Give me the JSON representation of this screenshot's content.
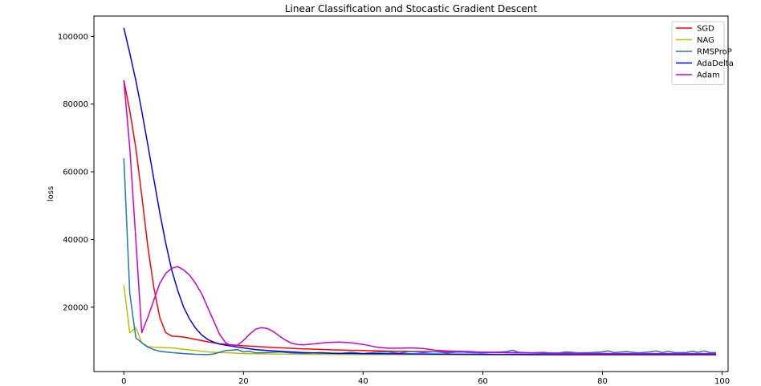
{
  "chart_data": {
    "type": "line",
    "title": "Linear Classification and Stocastic Gradient Descent",
    "xlabel": "",
    "ylabel": "loss",
    "xlim": [
      -5,
      101
    ],
    "ylim": [
      1000,
      106000
    ],
    "xticks": [
      0,
      20,
      40,
      60,
      80,
      100
    ],
    "yticks": [
      20000,
      40000,
      60000,
      80000,
      100000
    ],
    "grid": false,
    "legend": "top-right",
    "series": [
      {
        "name": "SGD",
        "color": "#ff0000",
        "points": [
          [
            0,
            87000
          ],
          [
            1,
            78000
          ],
          [
            2,
            67000
          ],
          [
            3,
            53000
          ],
          [
            4,
            38000
          ],
          [
            5,
            26000
          ],
          [
            6,
            17000
          ],
          [
            7,
            12500
          ],
          [
            8,
            11500
          ],
          [
            10,
            11200
          ],
          [
            12,
            10500
          ],
          [
            14,
            9800
          ],
          [
            16,
            9200
          ],
          [
            18,
            8900
          ],
          [
            20,
            8600
          ],
          [
            25,
            8100
          ],
          [
            30,
            7700
          ],
          [
            35,
            7400
          ],
          [
            40,
            7200
          ],
          [
            45,
            7000
          ],
          [
            50,
            6900
          ],
          [
            55,
            6800
          ],
          [
            60,
            6700
          ],
          [
            65,
            6600
          ],
          [
            70,
            6500
          ],
          [
            75,
            6400
          ],
          [
            80,
            6300
          ],
          [
            85,
            6200
          ],
          [
            90,
            6100
          ],
          [
            95,
            6000
          ],
          [
            99,
            6000
          ]
        ]
      },
      {
        "name": "NAG",
        "color": "#bfbf00",
        "points": [
          [
            0,
            26500
          ],
          [
            1,
            12500
          ],
          [
            2,
            14000
          ],
          [
            3,
            9500
          ],
          [
            4,
            8400
          ],
          [
            5,
            8200
          ],
          [
            8,
            8000
          ],
          [
            10,
            7600
          ],
          [
            12,
            7200
          ],
          [
            14,
            6800
          ],
          [
            16,
            6600
          ],
          [
            18,
            6500
          ],
          [
            20,
            6300
          ],
          [
            25,
            6200
          ],
          [
            30,
            6100
          ],
          [
            40,
            6000
          ],
          [
            50,
            6000
          ],
          [
            60,
            5900
          ],
          [
            70,
            5900
          ],
          [
            80,
            5900
          ],
          [
            90,
            5900
          ],
          [
            99,
            5900
          ]
        ]
      },
      {
        "name": "RMSProP",
        "color": "#1f77b4",
        "points": [
          [
            0,
            64000
          ],
          [
            1,
            24000
          ],
          [
            2,
            11000
          ],
          [
            3,
            9500
          ],
          [
            4,
            8200
          ],
          [
            5,
            7500
          ],
          [
            6,
            7000
          ],
          [
            8,
            6600
          ],
          [
            10,
            6300
          ],
          [
            12,
            6100
          ],
          [
            14,
            6000
          ],
          [
            15,
            6200
          ],
          [
            16,
            6700
          ],
          [
            17,
            7200
          ],
          [
            18,
            7300
          ],
          [
            19,
            7500
          ],
          [
            20,
            6800
          ],
          [
            21,
            7000
          ],
          [
            22,
            6500
          ],
          [
            24,
            6600
          ],
          [
            26,
            6800
          ],
          [
            28,
            6500
          ],
          [
            30,
            6400
          ],
          [
            33,
            6600
          ],
          [
            36,
            6300
          ],
          [
            38,
            6700
          ],
          [
            40,
            6300
          ],
          [
            42,
            6700
          ],
          [
            44,
            6800
          ],
          [
            46,
            6400
          ],
          [
            48,
            7000
          ],
          [
            50,
            6600
          ],
          [
            52,
            6900
          ],
          [
            54,
            6500
          ],
          [
            56,
            6800
          ],
          [
            58,
            6600
          ],
          [
            60,
            6500
          ],
          [
            62,
            6700
          ],
          [
            64,
            6900
          ],
          [
            65,
            7300
          ],
          [
            66,
            6700
          ],
          [
            68,
            6500
          ],
          [
            70,
            6700
          ],
          [
            72,
            6400
          ],
          [
            74,
            6800
          ],
          [
            76,
            6500
          ],
          [
            78,
            6600
          ],
          [
            80,
            6800
          ],
          [
            81,
            7100
          ],
          [
            82,
            6600
          ],
          [
            84,
            6900
          ],
          [
            86,
            6500
          ],
          [
            88,
            6800
          ],
          [
            89,
            7100
          ],
          [
            90,
            6600
          ],
          [
            91,
            7000
          ],
          [
            92,
            6600
          ],
          [
            94,
            6600
          ],
          [
            95,
            7000
          ],
          [
            96,
            6700
          ],
          [
            97,
            7100
          ],
          [
            98,
            6600
          ],
          [
            99,
            6600
          ]
        ]
      },
      {
        "name": "AdaDelta",
        "color": "#0000ff",
        "points": [
          [
            0,
            102500
          ],
          [
            1,
            95000
          ],
          [
            2,
            87000
          ],
          [
            3,
            78000
          ],
          [
            4,
            68000
          ],
          [
            5,
            58000
          ],
          [
            6,
            48000
          ],
          [
            7,
            39000
          ],
          [
            8,
            31000
          ],
          [
            9,
            25000
          ],
          [
            10,
            20000
          ],
          [
            11,
            16500
          ],
          [
            12,
            13800
          ],
          [
            13,
            11800
          ],
          [
            14,
            10500
          ],
          [
            15,
            9700
          ],
          [
            16,
            9100
          ],
          [
            18,
            8500
          ],
          [
            20,
            8000
          ],
          [
            22,
            7500
          ],
          [
            24,
            7200
          ],
          [
            26,
            7000
          ],
          [
            28,
            6800
          ],
          [
            30,
            6600
          ],
          [
            35,
            6400
          ],
          [
            40,
            6300
          ],
          [
            50,
            6200
          ],
          [
            60,
            6100
          ],
          [
            70,
            6000
          ],
          [
            80,
            6000
          ],
          [
            90,
            6000
          ],
          [
            99,
            6000
          ]
        ]
      },
      {
        "name": "Adam",
        "color": "#cc00cc",
        "points": [
          [
            0,
            87000
          ],
          [
            1,
            67000
          ],
          [
            2,
            40000
          ],
          [
            3,
            12500
          ],
          [
            4,
            17000
          ],
          [
            5,
            22000
          ],
          [
            6,
            27000
          ],
          [
            7,
            30000
          ],
          [
            8,
            31500
          ],
          [
            9,
            32000
          ],
          [
            10,
            31000
          ],
          [
            11,
            29500
          ],
          [
            12,
            27000
          ],
          [
            13,
            24000
          ],
          [
            14,
            20000
          ],
          [
            15,
            16000
          ],
          [
            16,
            12000
          ],
          [
            17,
            9500
          ],
          [
            18,
            8600
          ],
          [
            19,
            8800
          ],
          [
            20,
            10200
          ],
          [
            21,
            12000
          ],
          [
            22,
            13500
          ],
          [
            23,
            14000
          ],
          [
            24,
            13700
          ],
          [
            25,
            12800
          ],
          [
            26,
            11500
          ],
          [
            27,
            10300
          ],
          [
            28,
            9400
          ],
          [
            29,
            9000
          ],
          [
            30,
            8900
          ],
          [
            32,
            9200
          ],
          [
            34,
            9600
          ],
          [
            36,
            9700
          ],
          [
            38,
            9500
          ],
          [
            40,
            9000
          ],
          [
            42,
            8300
          ],
          [
            44,
            7900
          ],
          [
            46,
            7900
          ],
          [
            48,
            8000
          ],
          [
            50,
            7800
          ],
          [
            52,
            7300
          ],
          [
            54,
            7100
          ],
          [
            56,
            7000
          ],
          [
            58,
            6900
          ],
          [
            60,
            6700
          ],
          [
            62,
            6700
          ],
          [
            64,
            6600
          ],
          [
            66,
            6500
          ],
          [
            70,
            6400
          ],
          [
            75,
            6300
          ],
          [
            80,
            6300
          ],
          [
            85,
            6300
          ],
          [
            90,
            6300
          ],
          [
            95,
            6300
          ],
          [
            99,
            6300
          ]
        ]
      }
    ]
  }
}
